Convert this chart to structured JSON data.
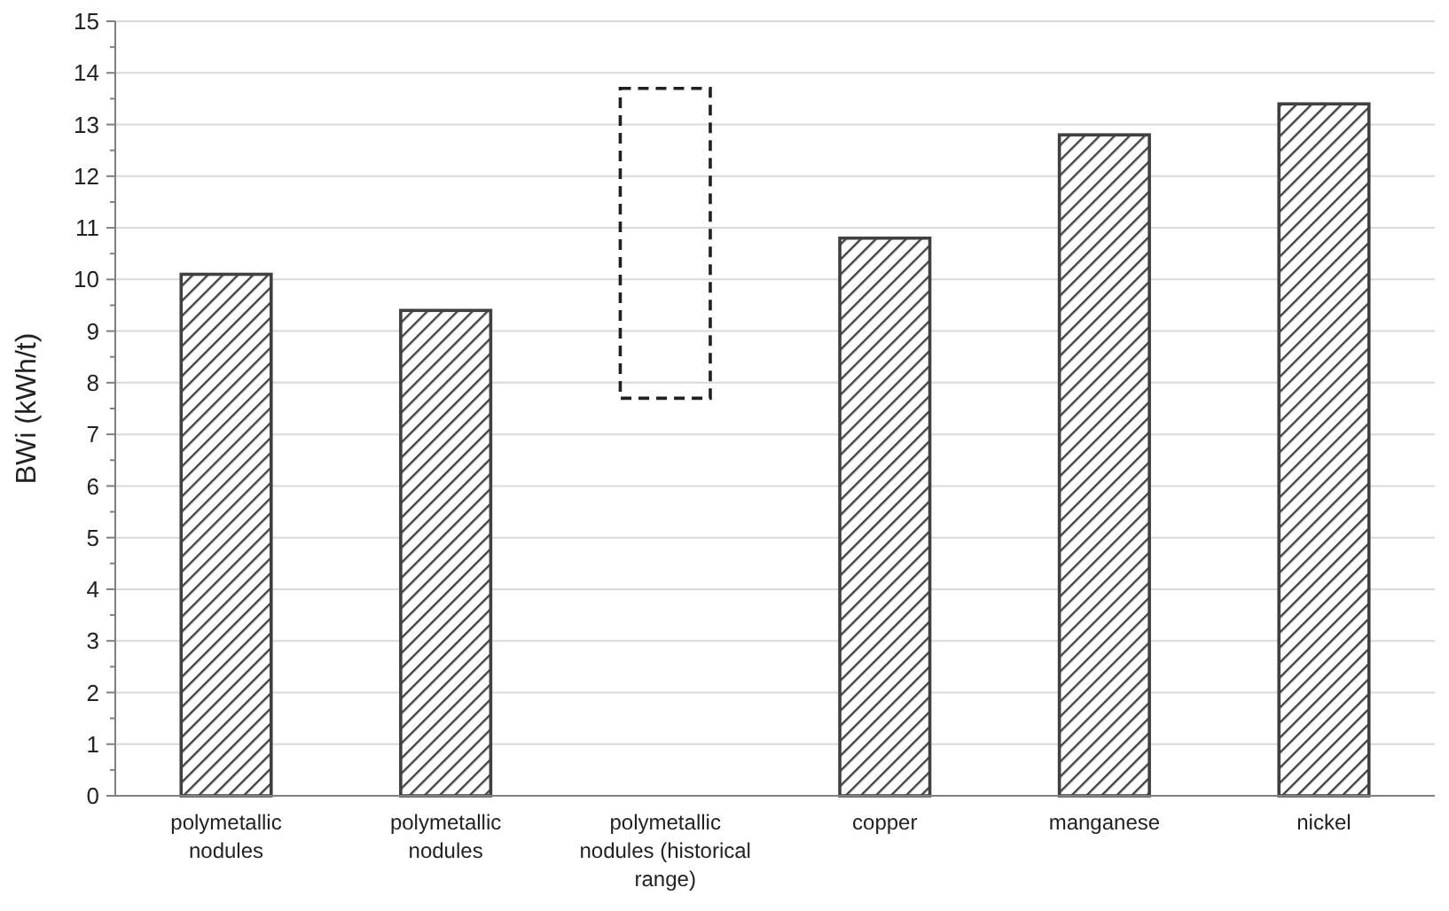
{
  "chart_data": {
    "type": "bar",
    "ylabel": "BWi (kWh/t)",
    "categories": [
      "polymetallic nodules",
      "polymetallic nodules",
      "polymetallic nodules (historical range)",
      "copper",
      "manganese",
      "nickel"
    ],
    "series": [
      {
        "color": "#404040",
        "values": [
          10.1,
          9.4,
          null,
          10.8,
          12.8,
          13.4
        ]
      },
      {
        "color": "#202020",
        "values": [
          null,
          null,
          6.0,
          null,
          null,
          null
        ],
        "base": [
          null,
          null,
          7.7,
          null,
          null,
          null
        ],
        "line_style": "dashed"
      }
    ],
    "ylim": [
      0,
      15
    ],
    "yticks": [
      0,
      {
        "value": 0.5,
        "label": null
      },
      1,
      {
        "value": 1.5,
        "label": null
      },
      2,
      {
        "value": 2.5,
        "label": null
      },
      3,
      {
        "value": 3.5,
        "label": null
      },
      4,
      {
        "value": 4.5,
        "label": null
      },
      5,
      {
        "value": 5.5,
        "label": null
      },
      6,
      {
        "value": 6.5,
        "label": null
      },
      7,
      {
        "value": 7.5,
        "label": null
      },
      8,
      {
        "value": 8.5,
        "label": null
      },
      9,
      {
        "value": 9.5,
        "label": null
      },
      10,
      {
        "value": 10.5,
        "label": null
      },
      11,
      {
        "value": 11.5,
        "label": null
      },
      12,
      {
        "value": 12.5,
        "label": null
      },
      13,
      {
        "value": 13.5,
        "label": null
      },
      14,
      {
        "value": 14.5,
        "label": null
      },
      15
    ],
    "grid": "y"
  }
}
